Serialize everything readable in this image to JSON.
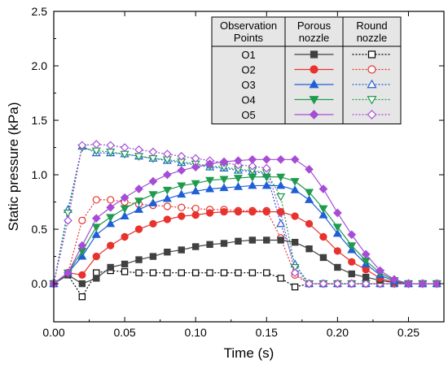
{
  "chart_data": {
    "type": "line",
    "xlabel": "Time (s)",
    "ylabel": "Static pressure (kPa)",
    "xlim": [
      0,
      0.275
    ],
    "ylim": [
      -0.35,
      2.5
    ],
    "x_ticks": [
      "0.00",
      "0.05",
      "0.10",
      "0.15",
      "0.20",
      "0.25"
    ],
    "x_tick_values": [
      0,
      0.05,
      0.1,
      0.15,
      0.2,
      0.25
    ],
    "y_ticks": [
      "0.0",
      "0.5",
      "1.0",
      "1.5",
      "2.0",
      "2.5"
    ],
    "y_tick_values": [
      0,
      0.5,
      1.0,
      1.5,
      2.0,
      2.5
    ],
    "grid": false,
    "legend": {
      "placement": "top-right",
      "headers": [
        "Observation Points",
        "Porous nozzle",
        "Round nozzle"
      ],
      "rows": [
        "O1",
        "O2",
        "O3",
        "O4",
        "O5"
      ]
    },
    "series": [
      {
        "group": "porous",
        "point": "O1",
        "color": "#404040",
        "marker": "square",
        "filled": true,
        "dash": "solid",
        "x": [
          0,
          0.01,
          0.02,
          0.03,
          0.04,
          0.05,
          0.06,
          0.07,
          0.08,
          0.09,
          0.1,
          0.11,
          0.12,
          0.13,
          0.14,
          0.15,
          0.16,
          0.17,
          0.18,
          0.19,
          0.2,
          0.21,
          0.22,
          0.23,
          0.24,
          0.25,
          0.26,
          0.27
        ],
        "y": [
          0.0,
          0.08,
          0.0,
          0.05,
          0.15,
          0.18,
          0.22,
          0.25,
          0.29,
          0.31,
          0.34,
          0.36,
          0.37,
          0.39,
          0.4,
          0.4,
          0.4,
          0.38,
          0.32,
          0.24,
          0.15,
          0.09,
          0.06,
          0.03,
          0.01,
          0.0,
          0.0,
          0.0
        ]
      },
      {
        "group": "porous",
        "point": "O2",
        "color": "#e8322d",
        "marker": "circle",
        "filled": true,
        "dash": "solid",
        "x": [
          0,
          0.01,
          0.02,
          0.03,
          0.04,
          0.05,
          0.06,
          0.07,
          0.08,
          0.09,
          0.1,
          0.11,
          0.12,
          0.13,
          0.14,
          0.15,
          0.16,
          0.17,
          0.18,
          0.19,
          0.2,
          0.21,
          0.22,
          0.23,
          0.24,
          0.25,
          0.26,
          0.27
        ],
        "y": [
          0.0,
          0.1,
          0.08,
          0.25,
          0.35,
          0.43,
          0.5,
          0.55,
          0.59,
          0.62,
          0.63,
          0.65,
          0.66,
          0.66,
          0.66,
          0.66,
          0.66,
          0.62,
          0.55,
          0.43,
          0.3,
          0.2,
          0.13,
          0.05,
          0.01,
          0.0,
          0.0,
          0.0
        ]
      },
      {
        "group": "porous",
        "point": "O3",
        "color": "#1f5fd6",
        "marker": "triangle-up",
        "filled": true,
        "dash": "solid",
        "x": [
          0,
          0.01,
          0.02,
          0.03,
          0.04,
          0.05,
          0.06,
          0.07,
          0.08,
          0.09,
          0.1,
          0.11,
          0.12,
          0.13,
          0.14,
          0.15,
          0.16,
          0.17,
          0.18,
          0.19,
          0.2,
          0.21,
          0.22,
          0.23,
          0.24,
          0.25,
          0.26,
          0.27
        ],
        "y": [
          0.0,
          0.1,
          0.25,
          0.45,
          0.55,
          0.62,
          0.68,
          0.74,
          0.78,
          0.82,
          0.85,
          0.87,
          0.88,
          0.89,
          0.9,
          0.9,
          0.9,
          0.86,
          0.77,
          0.63,
          0.46,
          0.31,
          0.18,
          0.08,
          0.02,
          0.0,
          0.0,
          0.0
        ]
      },
      {
        "group": "porous",
        "point": "O4",
        "color": "#1f9a4e",
        "marker": "triangle-down",
        "filled": true,
        "dash": "solid",
        "x": [
          0,
          0.01,
          0.02,
          0.03,
          0.04,
          0.05,
          0.06,
          0.07,
          0.08,
          0.09,
          0.1,
          0.11,
          0.12,
          0.13,
          0.14,
          0.15,
          0.16,
          0.17,
          0.18,
          0.19,
          0.2,
          0.21,
          0.22,
          0.23,
          0.24,
          0.25,
          0.26,
          0.27
        ],
        "y": [
          0.0,
          0.1,
          0.3,
          0.52,
          0.61,
          0.69,
          0.76,
          0.82,
          0.86,
          0.9,
          0.92,
          0.95,
          0.96,
          0.97,
          0.98,
          0.98,
          0.98,
          0.94,
          0.84,
          0.69,
          0.52,
          0.35,
          0.21,
          0.1,
          0.03,
          0.0,
          0.0,
          0.0
        ]
      },
      {
        "group": "porous",
        "point": "O5",
        "color": "#a64dd6",
        "marker": "diamond",
        "filled": true,
        "dash": "solid",
        "x": [
          0,
          0.01,
          0.02,
          0.03,
          0.04,
          0.05,
          0.06,
          0.07,
          0.08,
          0.09,
          0.1,
          0.11,
          0.12,
          0.13,
          0.14,
          0.15,
          0.16,
          0.17,
          0.18,
          0.19,
          0.2,
          0.21,
          0.22,
          0.23,
          0.24,
          0.25,
          0.26,
          0.27
        ],
        "y": [
          0.0,
          0.1,
          0.35,
          0.6,
          0.7,
          0.79,
          0.87,
          0.94,
          1.0,
          1.04,
          1.07,
          1.1,
          1.12,
          1.13,
          1.14,
          1.14,
          1.14,
          1.14,
          1.05,
          0.87,
          0.65,
          0.45,
          0.27,
          0.12,
          0.04,
          0.0,
          0.0,
          0.0
        ]
      },
      {
        "group": "round",
        "point": "O1",
        "color": "#000000",
        "marker": "square",
        "filled": false,
        "dash": "dot",
        "x": [
          0,
          0.01,
          0.02,
          0.03,
          0.04,
          0.05,
          0.06,
          0.07,
          0.08,
          0.09,
          0.1,
          0.11,
          0.12,
          0.13,
          0.14,
          0.15,
          0.16,
          0.17,
          0.18,
          0.19,
          0.2,
          0.21,
          0.22,
          0.23,
          0.24,
          0.25,
          0.26,
          0.27
        ],
        "y": [
          0.0,
          0.08,
          -0.12,
          0.1,
          0.12,
          0.11,
          0.1,
          0.1,
          0.1,
          0.1,
          0.1,
          0.1,
          0.1,
          0.1,
          0.1,
          0.1,
          0.05,
          -0.03,
          0.0,
          0.0,
          0.0,
          0.0,
          0.0,
          0.0,
          0.0,
          0.0,
          0.0,
          0.0
        ]
      },
      {
        "group": "round",
        "point": "O2",
        "color": "#e8322d",
        "marker": "circle",
        "filled": false,
        "dash": "dot",
        "x": [
          0,
          0.01,
          0.02,
          0.03,
          0.04,
          0.05,
          0.06,
          0.07,
          0.08,
          0.09,
          0.1,
          0.11,
          0.12,
          0.13,
          0.14,
          0.15,
          0.16,
          0.17,
          0.18,
          0.19,
          0.2,
          0.21,
          0.22,
          0.23,
          0.24,
          0.25,
          0.26,
          0.27
        ],
        "y": [
          0.0,
          0.1,
          0.58,
          0.77,
          0.77,
          0.75,
          0.73,
          0.72,
          0.71,
          0.7,
          0.69,
          0.68,
          0.68,
          0.67,
          0.67,
          0.67,
          0.42,
          0.08,
          0.0,
          0.0,
          0.0,
          0.0,
          0.0,
          0.0,
          0.0,
          0.0,
          0.0,
          0.0
        ]
      },
      {
        "group": "round",
        "point": "O3",
        "color": "#1f5fd6",
        "marker": "triangle-up",
        "filled": false,
        "dash": "dot",
        "x": [
          0,
          0.01,
          0.02,
          0.03,
          0.04,
          0.05,
          0.06,
          0.07,
          0.08,
          0.09,
          0.1,
          0.11,
          0.12,
          0.13,
          0.14,
          0.15,
          0.16,
          0.17,
          0.18,
          0.19,
          0.2,
          0.21,
          0.22,
          0.23,
          0.24,
          0.25,
          0.26,
          0.27
        ],
        "y": [
          0.0,
          0.68,
          1.26,
          1.2,
          1.2,
          1.19,
          1.17,
          1.15,
          1.13,
          1.11,
          1.09,
          1.07,
          1.06,
          1.04,
          1.03,
          1.01,
          0.55,
          0.18,
          0.0,
          0.0,
          0.0,
          0.0,
          0.0,
          0.0,
          0.0,
          0.0,
          0.0,
          0.0
        ]
      },
      {
        "group": "round",
        "point": "O4",
        "color": "#1f9a4e",
        "marker": "triangle-down",
        "filled": false,
        "dash": "dot",
        "x": [
          0,
          0.01,
          0.02,
          0.03,
          0.04,
          0.05,
          0.06,
          0.07,
          0.08,
          0.09,
          0.1,
          0.11,
          0.12,
          0.13,
          0.14,
          0.15,
          0.16,
          0.17,
          0.18,
          0.19,
          0.2,
          0.21,
          0.22,
          0.23,
          0.24,
          0.25,
          0.26,
          0.27
        ],
        "y": [
          0.0,
          0.65,
          1.25,
          1.22,
          1.21,
          1.19,
          1.17,
          1.15,
          1.14,
          1.12,
          1.1,
          1.08,
          1.07,
          1.05,
          1.04,
          1.02,
          0.8,
          0.15,
          0.0,
          0.0,
          0.0,
          0.0,
          0.0,
          0.0,
          0.0,
          0.0,
          0.0,
          0.0
        ]
      },
      {
        "group": "round",
        "point": "O5",
        "color": "#a64dd6",
        "marker": "diamond",
        "filled": false,
        "dash": "dot",
        "x": [
          0,
          0.01,
          0.02,
          0.03,
          0.04,
          0.05,
          0.06,
          0.07,
          0.08,
          0.09,
          0.1,
          0.11,
          0.12,
          0.13,
          0.14,
          0.15,
          0.16,
          0.17,
          0.18,
          0.19,
          0.2,
          0.21,
          0.22,
          0.23,
          0.24,
          0.25,
          0.26,
          0.27
        ],
        "y": [
          0.0,
          0.58,
          1.27,
          1.28,
          1.27,
          1.25,
          1.23,
          1.21,
          1.19,
          1.17,
          1.15,
          1.13,
          1.11,
          1.09,
          1.08,
          1.06,
          0.65,
          0.1,
          0.0,
          0.0,
          0.0,
          0.0,
          0.0,
          0.0,
          0.0,
          0.0,
          0.0,
          0.0
        ]
      }
    ]
  }
}
